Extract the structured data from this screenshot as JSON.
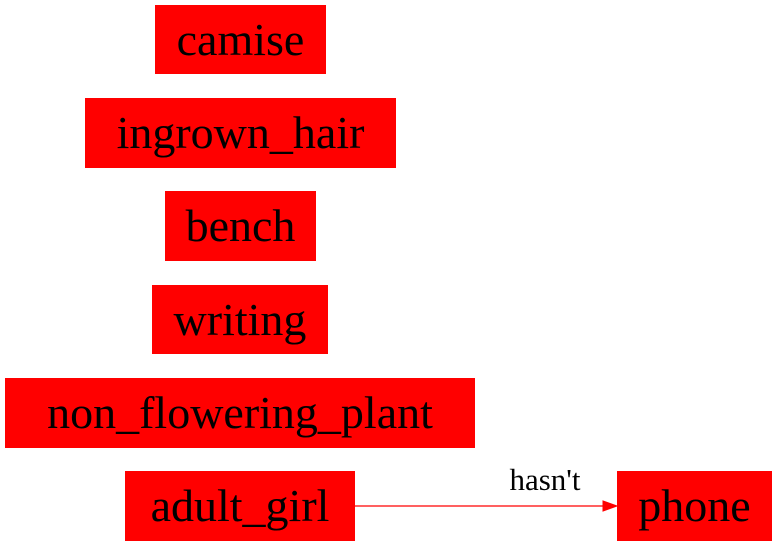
{
  "colors": {
    "node_fill": "#ff0000",
    "edge": "#ff0000",
    "text": "#000000"
  },
  "nodes": {
    "camise": "camise",
    "ingrown_hair": "ingrown_hair",
    "bench": "bench",
    "writing": "writing",
    "non_flowering_plant": "non_flowering_plant",
    "adult_girl": "adult_girl",
    "phone": "phone"
  },
  "edges": [
    {
      "from": "adult_girl",
      "to": "phone",
      "label": "hasn't"
    }
  ]
}
